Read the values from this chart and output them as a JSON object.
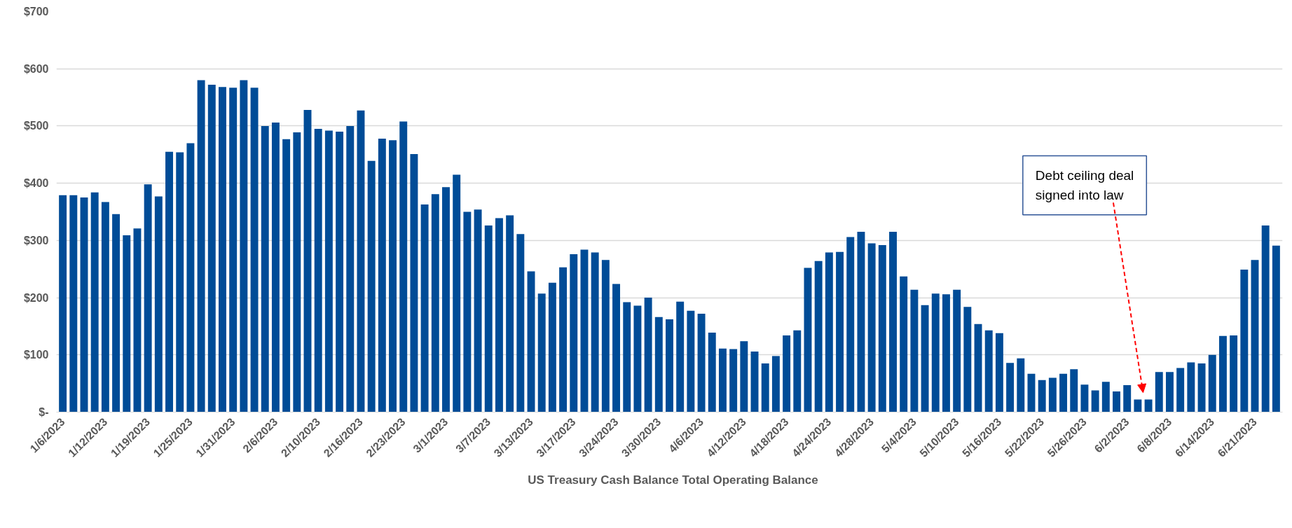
{
  "chart_data": {
    "type": "bar",
    "categories": [
      "1/6/2023",
      null,
      null,
      null,
      "1/12/2023",
      null,
      null,
      null,
      "1/19/2023",
      null,
      null,
      null,
      "1/25/2023",
      null,
      null,
      null,
      "1/31/2023",
      null,
      null,
      null,
      "2/6/2023",
      null,
      null,
      null,
      "2/10/2023",
      null,
      null,
      null,
      "2/16/2023",
      null,
      null,
      null,
      "2/23/2023",
      null,
      null,
      null,
      "3/1/2023",
      null,
      null,
      null,
      "3/7/2023",
      null,
      null,
      null,
      "3/13/2023",
      null,
      null,
      null,
      "3/17/2023",
      null,
      null,
      null,
      "3/24/2023",
      null,
      null,
      null,
      "3/30/2023",
      null,
      null,
      null,
      "4/6/2023",
      null,
      null,
      null,
      "4/12/2023",
      null,
      null,
      null,
      "4/18/2023",
      null,
      null,
      null,
      "4/24/2023",
      null,
      null,
      null,
      "4/28/2023",
      null,
      null,
      null,
      "5/4/2023",
      null,
      null,
      null,
      "5/10/2023",
      null,
      null,
      null,
      "5/16/2023",
      null,
      null,
      null,
      "5/22/2023",
      null,
      null,
      null,
      "5/26/2023",
      null,
      null,
      null,
      "6/2/2023",
      null,
      null,
      null,
      "6/8/2023",
      null,
      null,
      null,
      "6/14/2023",
      null,
      null,
      null,
      "6/21/2023",
      null,
      null
    ],
    "series": [
      {
        "name": "US Treasury Cash Balance Total Operating Balance",
        "color": "#004c97",
        "values": [
          379,
          379,
          375,
          384,
          367,
          346,
          309,
          321,
          398,
          377,
          455,
          454,
          470,
          580,
          572,
          568,
          567,
          580,
          567,
          500,
          506,
          477,
          489,
          528,
          495,
          492,
          490,
          500,
          527,
          439,
          478,
          475,
          508,
          451,
          363,
          381,
          393,
          415,
          350,
          354,
          326,
          339,
          344,
          311,
          246,
          207,
          226,
          253,
          276,
          284,
          279,
          266,
          224,
          192,
          186,
          200,
          166,
          162,
          193,
          177,
          172,
          139,
          111,
          110,
          124,
          106,
          85,
          98,
          134,
          143,
          252,
          264,
          279,
          280,
          306,
          315,
          295,
          292,
          315,
          237,
          214,
          187,
          207,
          206,
          214,
          184,
          154,
          143,
          138,
          86,
          94,
          67,
          56,
          60,
          67,
          75,
          48,
          38,
          53,
          36,
          47,
          22,
          22,
          70,
          70,
          77,
          87,
          85,
          100,
          133,
          134,
          249,
          266,
          326,
          291
        ]
      }
    ],
    "ylim": [
      0,
      700
    ],
    "yticks": [
      {
        "value": 0,
        "label": "$-"
      },
      {
        "value": 100,
        "label": "$100"
      },
      {
        "value": 200,
        "label": "$200"
      },
      {
        "value": 300,
        "label": "$300"
      },
      {
        "value": 400,
        "label": "$400"
      },
      {
        "value": 500,
        "label": "$500"
      },
      {
        "value": 600,
        "label": "$600"
      },
      {
        "value": 700,
        "label": "$700"
      }
    ],
    "grid": "y",
    "legend": "bottom",
    "annotations": [
      "Debt ceiling deal signed into law"
    ]
  }
}
